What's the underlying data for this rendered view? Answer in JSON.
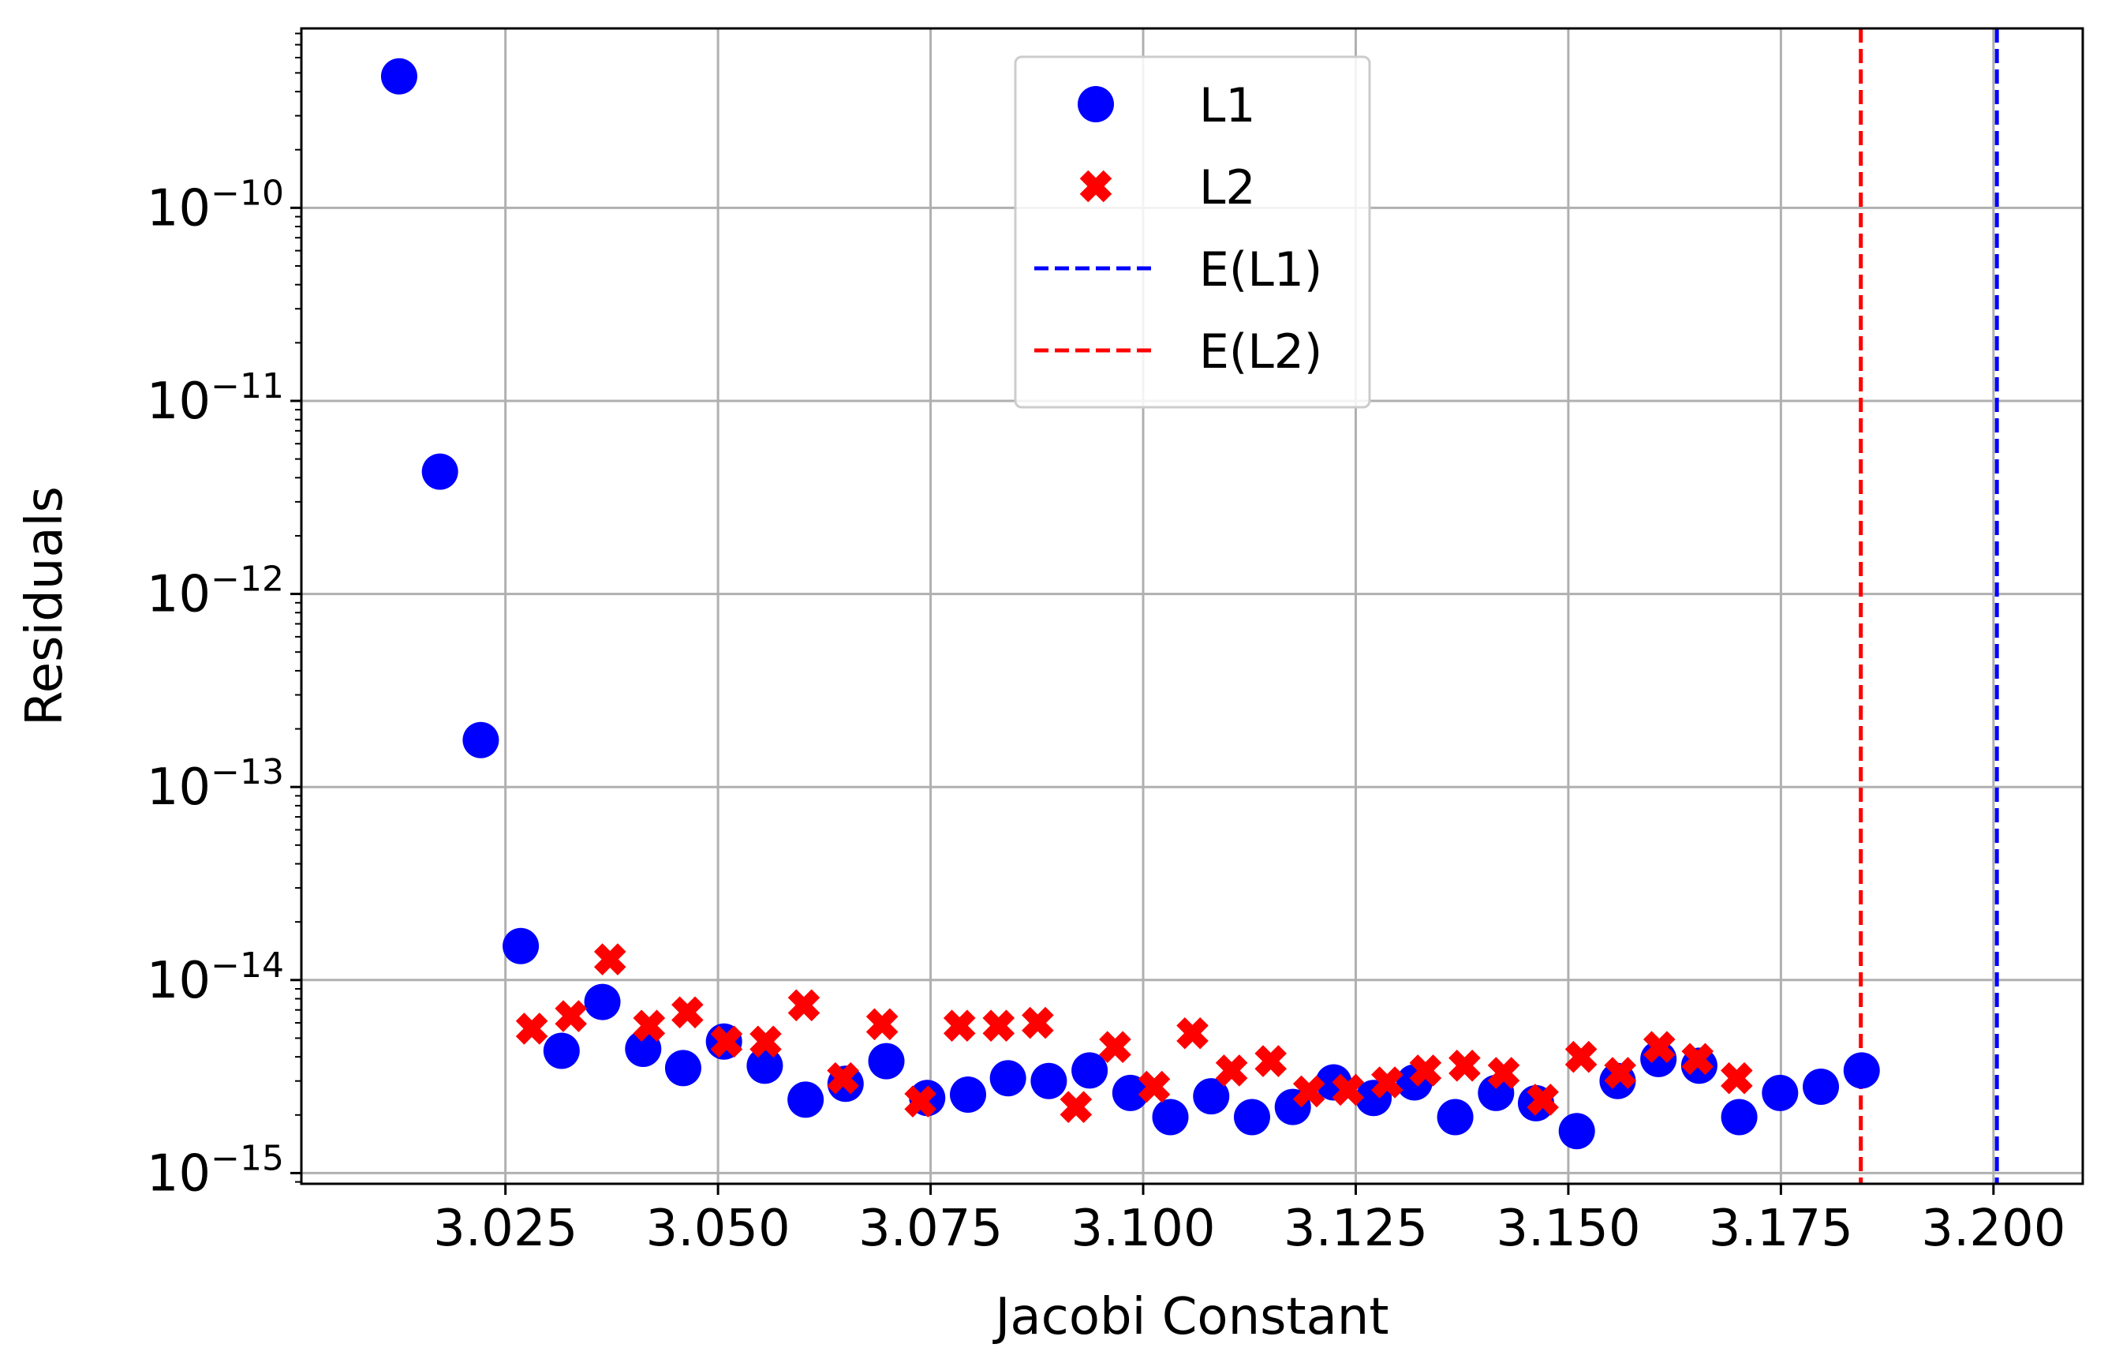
{
  "chart_data": {
    "type": "scatter",
    "xlabel": "Jacobi Constant",
    "ylabel": "Residuals",
    "y_scale": "log",
    "grid": true,
    "legend_placement": "upper center",
    "xlim": [
      3.001,
      3.2105
    ],
    "ylim": [
      8.8e-16,
      8.5e-10
    ],
    "x_ticks": [
      3.025,
      3.05,
      3.075,
      3.1,
      3.125,
      3.15,
      3.175,
      3.2
    ],
    "x_tick_labels": [
      "3.025",
      "3.050",
      "3.075",
      "3.100",
      "3.125",
      "3.150",
      "3.175",
      "3.200"
    ],
    "y_ticks": [
      {
        "value": 1e-15,
        "base": "10",
        "exp": "−15"
      },
      {
        "value": 1e-14,
        "base": "10",
        "exp": "−14"
      },
      {
        "value": 1e-13,
        "base": "10",
        "exp": "−13"
      },
      {
        "value": 1e-12,
        "base": "10",
        "exp": "−12"
      },
      {
        "value": 1e-11,
        "base": "10",
        "exp": "−11"
      },
      {
        "value": 1e-10,
        "base": "10",
        "exp": "−10"
      }
    ],
    "series": [
      {
        "name": "L1",
        "marker": "circle",
        "color": "#0000ff",
        "points": [
          [
            3.0125,
            4.8e-10
          ],
          [
            3.0173,
            4.3e-12
          ],
          [
            3.0221,
            1.75e-13
          ],
          [
            3.0268,
            1.5e-14
          ],
          [
            3.0316,
            4.3e-15
          ],
          [
            3.0364,
            7.7e-15
          ],
          [
            3.0412,
            4.4e-15
          ],
          [
            3.0459,
            3.5e-15
          ],
          [
            3.0507,
            4.8e-15
          ],
          [
            3.0555,
            3.6e-15
          ],
          [
            3.0603,
            2.4e-15
          ],
          [
            3.065,
            2.9e-15
          ],
          [
            3.0698,
            3.8e-15
          ],
          [
            3.0746,
            2.45e-15
          ],
          [
            3.0794,
            2.55e-15
          ],
          [
            3.0841,
            3.1e-15
          ],
          [
            3.0889,
            3e-15
          ],
          [
            3.0937,
            3.4e-15
          ],
          [
            3.0985,
            2.6e-15
          ],
          [
            3.1032,
            1.95e-15
          ],
          [
            3.108,
            2.5e-15
          ],
          [
            3.1128,
            1.95e-15
          ],
          [
            3.1176,
            2.2e-15
          ],
          [
            3.1224,
            2.95e-15
          ],
          [
            3.1271,
            2.45e-15
          ],
          [
            3.1319,
            2.95e-15
          ],
          [
            3.1367,
            1.95e-15
          ],
          [
            3.1415,
            2.6e-15
          ],
          [
            3.1462,
            2.3e-15
          ],
          [
            3.151,
            1.65e-15
          ],
          [
            3.1558,
            3e-15
          ],
          [
            3.1606,
            3.9e-15
          ],
          [
            3.1654,
            3.6e-15
          ],
          [
            3.1701,
            1.95e-15
          ],
          [
            3.1749,
            2.6e-15
          ],
          [
            3.1797,
            2.8e-15
          ],
          [
            3.1845,
            3.4e-15
          ]
        ]
      },
      {
        "name": "L2",
        "marker": "x",
        "color": "#ff0000",
        "points": [
          [
            3.0281,
            5.6e-15
          ],
          [
            3.0327,
            6.5e-15
          ],
          [
            3.0373,
            1.28e-14
          ],
          [
            3.0419,
            5.8e-15
          ],
          [
            3.0464,
            6.8e-15
          ],
          [
            3.051,
            4.8e-15
          ],
          [
            3.0556,
            4.8e-15
          ],
          [
            3.0601,
            7.4e-15
          ],
          [
            3.0647,
            3.1e-15
          ],
          [
            3.0693,
            5.9e-15
          ],
          [
            3.0738,
            2.35e-15
          ],
          [
            3.0784,
            5.8e-15
          ],
          [
            3.083,
            5.8e-15
          ],
          [
            3.0876,
            6e-15
          ],
          [
            3.0921,
            2.2e-15
          ],
          [
            3.0967,
            4.5e-15
          ],
          [
            3.1013,
            2.8e-15
          ],
          [
            3.1058,
            5.3e-15
          ],
          [
            3.1104,
            3.4e-15
          ],
          [
            3.115,
            3.8e-15
          ],
          [
            3.1195,
            2.65e-15
          ],
          [
            3.1241,
            2.7e-15
          ],
          [
            3.1287,
            2.95e-15
          ],
          [
            3.1332,
            3.4e-15
          ],
          [
            3.1378,
            3.6e-15
          ],
          [
            3.1424,
            3.3e-15
          ],
          [
            3.147,
            2.4e-15
          ],
          [
            3.1515,
            4e-15
          ],
          [
            3.1561,
            3.3e-15
          ],
          [
            3.1607,
            4.5e-15
          ],
          [
            3.1652,
            3.9e-15
          ],
          [
            3.1698,
            3.1e-15
          ]
        ]
      }
    ],
    "vlines": [
      {
        "name": "E(L1)",
        "x": 3.2004,
        "color": "#0000ff",
        "style": "dashed"
      },
      {
        "name": "E(L2)",
        "x": 3.1844,
        "color": "#ff0000",
        "style": "dashed"
      }
    ],
    "legend": [
      {
        "label": "L1",
        "kind": "circle",
        "color": "#0000ff"
      },
      {
        "label": "L2",
        "kind": "x",
        "color": "#ff0000"
      },
      {
        "label": "E(L1)",
        "kind": "dashed-line",
        "color": "#0000ff"
      },
      {
        "label": "E(L2)",
        "kind": "dashed-line",
        "color": "#ff0000"
      }
    ]
  }
}
